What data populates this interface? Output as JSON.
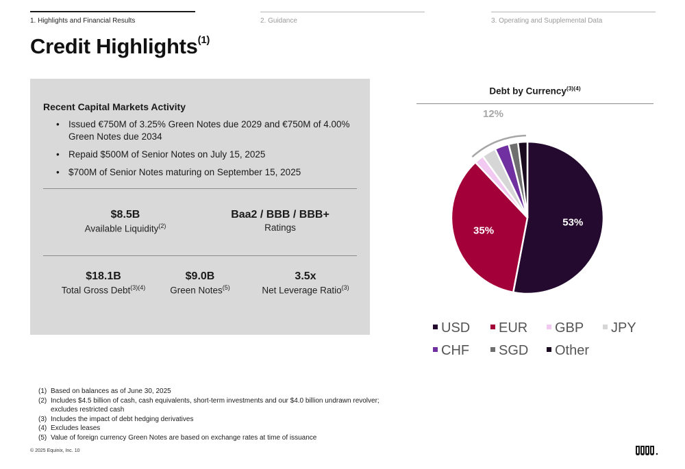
{
  "nav": [
    {
      "label": "1. Highlights and Financial Results",
      "active": true
    },
    {
      "label": "2. Guidance",
      "active": false
    },
    {
      "label": "3. Operating and Supplemental Data",
      "active": false
    }
  ],
  "title": {
    "text": "Credit Highlights",
    "sup": "(1)"
  },
  "panel": {
    "heading": "Recent Capital Markets Activity",
    "bullets": [
      "Issued €750M of 3.25% Green Notes due 2029 and €750M of 4.00% Green Notes due 2034",
      "Repaid $500M of Senior Notes on July 15, 2025",
      "$700M of Senior Notes maturing on September 15, 2025"
    ],
    "metrics_row1": [
      {
        "value": "$8.5B",
        "label": "Available Liquidity",
        "sup": "(2)"
      },
      {
        "value": "Baa2 / BBB / BBB+",
        "label": "Ratings",
        "sup": ""
      }
    ],
    "metrics_row2": [
      {
        "value": "$18.1B",
        "label": "Total Gross Debt",
        "sup": "(3)(4)"
      },
      {
        "value": "$9.0B",
        "label": "Green Notes",
        "sup": "(5)"
      },
      {
        "value": "3.5x",
        "label": "Net Leverage Ratio",
        "sup": "(3)"
      }
    ]
  },
  "chart_data": {
    "type": "pie",
    "title": "Debt by Currency",
    "title_sup": "(3)(4)",
    "slices": [
      {
        "name": "USD",
        "value": 53,
        "color": "#240a2e",
        "label": "53%"
      },
      {
        "name": "EUR",
        "value": 35,
        "color": "#a3003a",
        "label": "35%"
      },
      {
        "name": "GBP",
        "value": 2,
        "color": "#f1c9f1",
        "label": ""
      },
      {
        "name": "JPY",
        "value": 3,
        "color": "#d6d6d6",
        "label": ""
      },
      {
        "name": "CHF",
        "value": 3,
        "color": "#7030a0",
        "label": ""
      },
      {
        "name": "SGD",
        "value": 2,
        "color": "#6f6f6f",
        "label": ""
      },
      {
        "name": "Other",
        "value": 2,
        "color": "#1a0a1f",
        "label": ""
      }
    ],
    "group_label": "12%",
    "legend_position": "bottom"
  },
  "footnotes": [
    {
      "n": "(1)",
      "text": "Based on balances as of June 30, 2025"
    },
    {
      "n": "(2)",
      "text": "Includes $4.5 billion of cash, cash equivalents, short-term investments and our $4.0 billion undrawn revolver; excludes restricted cash"
    },
    {
      "n": "(3)",
      "text": "Includes the impact of debt hedging derivatives"
    },
    {
      "n": "(4)",
      "text": "Excludes leases"
    },
    {
      "n": "(5)",
      "text": "Value of foreign currency Green Notes are based on exchange rates at time of issuance"
    }
  ],
  "copyright": "© 2025 Equinix, Inc.    10",
  "logo_text": "EQUINIX"
}
